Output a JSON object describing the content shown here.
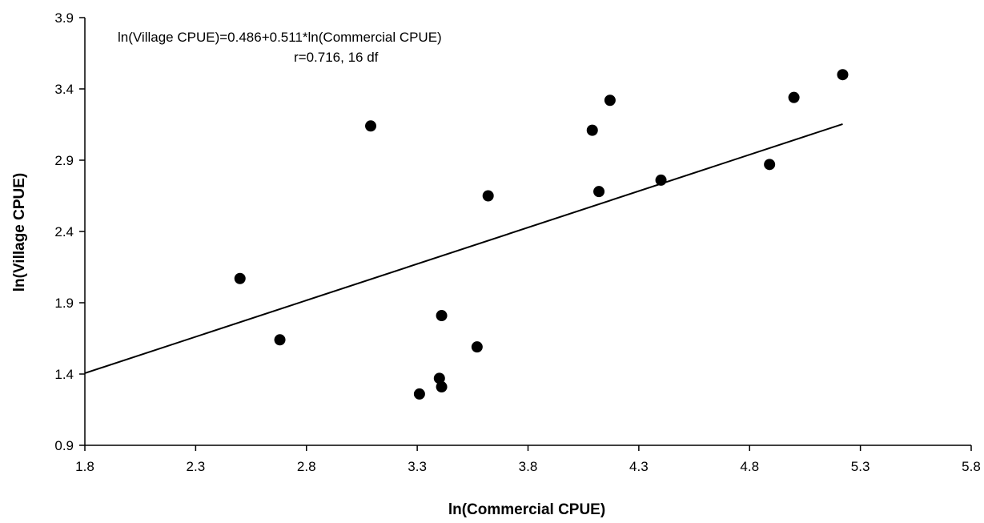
{
  "chart_data": {
    "type": "scatter",
    "title": "",
    "xlabel": "ln(Commercial CPUE)",
    "ylabel": "ln(Village CPUE)",
    "xlim": [
      1.8,
      5.8
    ],
    "ylim": [
      0.9,
      3.9
    ],
    "x_ticks": [
      "1.8",
      "2.3",
      "2.8",
      "3.3",
      "3.8",
      "4.3",
      "4.8",
      "5.3",
      "5.8"
    ],
    "y_ticks": [
      "0.9",
      "1.4",
      "1.9",
      "2.4",
      "2.9",
      "3.4",
      "3.9"
    ],
    "grid": false,
    "series": [
      {
        "points": [
          {
            "x": 2.5,
            "y": 2.07
          },
          {
            "x": 2.68,
            "y": 1.64
          },
          {
            "x": 3.09,
            "y": 3.14
          },
          {
            "x": 3.31,
            "y": 1.26
          },
          {
            "x": 3.4,
            "y": 1.37
          },
          {
            "x": 3.41,
            "y": 1.31
          },
          {
            "x": 3.41,
            "y": 1.81
          },
          {
            "x": 3.57,
            "y": 1.59
          },
          {
            "x": 3.62,
            "y": 2.65
          },
          {
            "x": 4.09,
            "y": 3.11
          },
          {
            "x": 4.12,
            "y": 2.68
          },
          {
            "x": 4.17,
            "y": 3.32
          },
          {
            "x": 4.4,
            "y": 2.76
          },
          {
            "x": 4.89,
            "y": 2.87
          },
          {
            "x": 5.0,
            "y": 3.34
          },
          {
            "x": 5.22,
            "y": 3.5
          }
        ]
      }
    ],
    "regression": {
      "intercept": 0.486,
      "slope": 0.511,
      "x_start": 1.8,
      "x_end": 5.22
    },
    "annotations": [
      "ln(Village CPUE)=0.486+0.511*ln(Commercial CPUE)",
      "r=0.716, 16 df"
    ]
  }
}
